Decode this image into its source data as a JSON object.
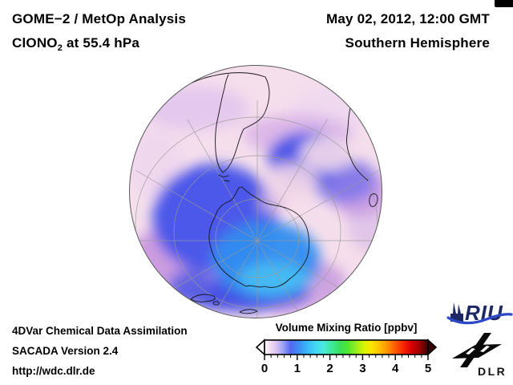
{
  "page": {
    "background": "#ffffff"
  },
  "header": {
    "left": {
      "line1": "GOME−2 / MetOp Analysis",
      "species_prefix": "ClONO",
      "species_subscript": "2",
      "species_suffix": " at 55.4 hPa"
    },
    "right": {
      "datetime": "May 02, 2012, 12:00 GMT",
      "hemisphere": "Southern Hemisphere"
    }
  },
  "footer": {
    "line1": "4DVar Chemical Data Assimilation",
    "line2": "SACADA Version 2.4",
    "line3": "http://wdc.dlr.de"
  },
  "colorbar": {
    "title": "Volume Mixing Ratio [ppbv]",
    "unit": "ppbv",
    "min": 0,
    "max": 5,
    "minor_tick_interval": 0.2,
    "tick_labels": [
      "0",
      "1",
      "2",
      "3",
      "4",
      "5"
    ],
    "gradient": [
      {
        "at": 0.0,
        "color": "#ffffff"
      },
      {
        "at": 0.03,
        "color": "#f2e2f2"
      },
      {
        "at": 0.07,
        "color": "#dcc4f2"
      },
      {
        "at": 0.11,
        "color": "#a0a4f6"
      },
      {
        "at": 0.16,
        "color": "#5468f0"
      },
      {
        "at": 0.21,
        "color": "#3e8ef4"
      },
      {
        "at": 0.26,
        "color": "#3ab6f8"
      },
      {
        "at": 0.31,
        "color": "#42d6f6"
      },
      {
        "at": 0.36,
        "color": "#48e8dc"
      },
      {
        "at": 0.41,
        "color": "#40e89c"
      },
      {
        "at": 0.46,
        "color": "#38e05c"
      },
      {
        "at": 0.51,
        "color": "#50e830"
      },
      {
        "at": 0.56,
        "color": "#96ee1e"
      },
      {
        "at": 0.61,
        "color": "#d8f400"
      },
      {
        "at": 0.65,
        "color": "#fae800"
      },
      {
        "at": 0.7,
        "color": "#ffc400"
      },
      {
        "at": 0.75,
        "color": "#ff9400"
      },
      {
        "at": 0.8,
        "color": "#ff5a00"
      },
      {
        "at": 0.85,
        "color": "#f62400"
      },
      {
        "at": 0.9,
        "color": "#d60000"
      },
      {
        "at": 0.95,
        "color": "#9c0000"
      },
      {
        "at": 1.0,
        "color": "#380000"
      }
    ]
  },
  "map": {
    "palette": {
      "globe_background_low_value": "#f6dfec",
      "lavender": "#dcbfe9",
      "purple_band": "#c795de",
      "blue_collar": "#4b59e9",
      "cyan_core": "#2f8df0",
      "bright_cyan": "#46bdf3",
      "coastline": "#15151a",
      "graticule": "#9a9a9a"
    }
  },
  "logos": {
    "riu": {
      "text": "RIU",
      "color": "#1d2763",
      "swoosh_color": "#2d49c9"
    },
    "dlr": {
      "text": "DLR",
      "color": "#111111"
    }
  },
  "corner_mark": {
    "color": "#000000"
  }
}
